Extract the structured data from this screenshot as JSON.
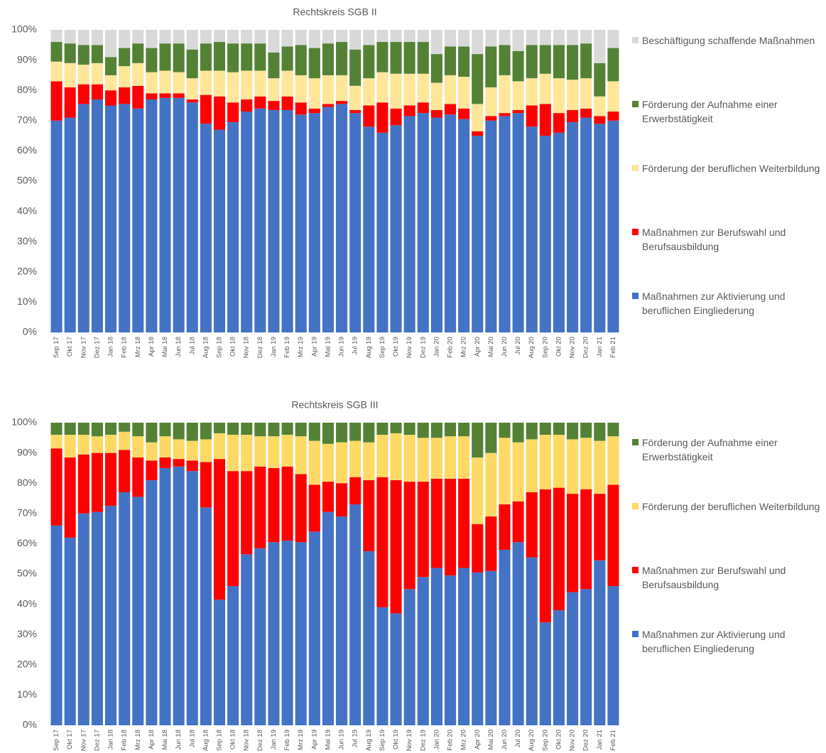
{
  "chart_data": [
    {
      "type": "stacked_bar",
      "title": "Rechtskreis SGB II",
      "legend": "right",
      "grid": false,
      "categories": [
        "Sep 17",
        "Okt 17",
        "Nov 17",
        "Dez 17",
        "Jan 18",
        "Feb 18",
        "Mrz 18",
        "Apr 18",
        "Mai 18",
        "Jun 18",
        "Jul 18",
        "Aug 18",
        "Sep 18",
        "Okt 18",
        "Nov 18",
        "Dez 18",
        "Jan 19",
        "Feb 19",
        "Mrz 19",
        "Apr 19",
        "Mai 19",
        "Jun 19",
        "Jul 19",
        "Aug 19",
        "Sep 19",
        "Okt 19",
        "Nov 19",
        "Dez 19",
        "Jan 20",
        "Feb 20",
        "Mrz 20",
        "Apr 20",
        "Mai 20",
        "Jun 20",
        "Jul 20",
        "Aug 20",
        "Sep 20",
        "Okt 20",
        "Nov 20",
        "Dez 20",
        "Jan 21",
        "Feb 21"
      ],
      "ylim": [
        0,
        100
      ],
      "yticks": [
        {
          "value": 0,
          "label": "0%"
        },
        {
          "value": 10,
          "label": "10%"
        },
        {
          "value": 20,
          "label": "20%"
        },
        {
          "value": 30,
          "label": "30%"
        },
        {
          "value": 40,
          "label": "40%"
        },
        {
          "value": 50,
          "label": "50%"
        },
        {
          "value": 60,
          "label": "60%"
        },
        {
          "value": 70,
          "label": "70%"
        },
        {
          "value": 80,
          "label": "80%"
        },
        {
          "value": 90,
          "label": "90%"
        },
        {
          "value": 100,
          "label": "100%"
        }
      ],
      "series": [
        {
          "name": "Maßnahmen zur Aktivierung und beruflichen Eingliederung",
          "color": "#4472c4",
          "values": [
            70,
            71,
            75.5,
            77,
            75,
            75.5,
            74,
            77,
            77.5,
            77.5,
            76,
            69,
            67,
            69.5,
            73,
            74,
            73.5,
            73.5,
            72,
            72.5,
            74.5,
            75.5,
            72.5,
            68,
            66,
            68.5,
            71.5,
            72.5,
            71,
            72,
            70.5,
            65,
            70,
            71.5,
            72.5,
            68,
            65,
            66,
            69.5,
            71,
            69,
            70
          ]
        },
        {
          "name": "Maßnahmen zur Berufswahl und Berufsausbildung",
          "color": "#ff0000",
          "values": [
            13,
            10,
            6.5,
            5,
            5,
            5.5,
            7.5,
            2,
            1.5,
            1.5,
            1,
            9.5,
            11,
            6.5,
            4,
            4,
            3,
            4.5,
            4,
            1.5,
            1,
            1,
            1,
            7,
            10,
            5.5,
            3.5,
            3.5,
            2.5,
            3.5,
            3.5,
            1.5,
            1.5,
            1,
            1,
            7,
            10.5,
            6.5,
            4,
            3,
            2.5,
            3
          ]
        },
        {
          "name": "Förderung der beruflichen Weiterbildung",
          "color": "#ffe699",
          "values": [
            6.5,
            8,
            6.5,
            7,
            5,
            7,
            7.5,
            7,
            7.5,
            7,
            7,
            8,
            8.5,
            10,
            9.5,
            8.5,
            7.5,
            8.5,
            9,
            10,
            9.5,
            8.5,
            8,
            9,
            10,
            11.5,
            10.5,
            9.5,
            9,
            9.5,
            10.5,
            9,
            9.5,
            12.5,
            9.5,
            9,
            10,
            11.5,
            10,
            10,
            6.5,
            10
          ]
        },
        {
          "name": "Förderung der Aufnahme einer Erwerbstätigkeit",
          "color": "#548235",
          "values": [
            6.5,
            6.5,
            6.5,
            6,
            6,
            6,
            6.5,
            8,
            9,
            9.5,
            9.5,
            9,
            9.5,
            9.5,
            9,
            9,
            8.5,
            8,
            10,
            10,
            10.5,
            11,
            12,
            11,
            10,
            10.5,
            10.5,
            10.5,
            9.5,
            9.5,
            10,
            16.5,
            13.5,
            10,
            10,
            11,
            9.5,
            11,
            11.5,
            11.5,
            11,
            11
          ]
        },
        {
          "name": "Beschäftigung schaffende Maßnahmen",
          "color": "#d9d9d9",
          "values": [
            4,
            4.5,
            5,
            5,
            9,
            6,
            4.5,
            6,
            4.5,
            4.5,
            6.5,
            4.5,
            4,
            4.5,
            4.5,
            4.5,
            7.5,
            5.5,
            5,
            6,
            4.5,
            4,
            6.5,
            5,
            4,
            4,
            4,
            4,
            8,
            5.5,
            5.5,
            8,
            5.5,
            5,
            7,
            5,
            5,
            5,
            5,
            4.5,
            11,
            6
          ]
        }
      ]
    },
    {
      "type": "stacked_bar",
      "title": "Rechtskreis SGB III",
      "legend": "right",
      "grid": false,
      "categories": [
        "Sep 17",
        "Okt 17",
        "Nov 17",
        "Dez 17",
        "Jan 18",
        "Feb 18",
        "Mrz 18",
        "Apr 18",
        "Mai 18",
        "Jun 18",
        "Jul 18",
        "Aug 18",
        "Sep 18",
        "Okt 18",
        "Nov 18",
        "Dez 18",
        "Jan 19",
        "Feb 19",
        "Mrz 19",
        "Apr 19",
        "Mai 19",
        "Jun 19",
        "Jul 19",
        "Aug 19",
        "Sep 19",
        "Okt 19",
        "Nov 19",
        "Dez 19",
        "Jan 20",
        "Feb 20",
        "Mrz 20",
        "Apr 20",
        "Mai 20",
        "Jun 20",
        "Jul 20",
        "Aug 20",
        "Sep 20",
        "Okt 20",
        "Nov 20",
        "Dez 20",
        "Jan 21",
        "Feb 21"
      ],
      "ylim": [
        0,
        100
      ],
      "yticks": [
        {
          "value": 0,
          "label": "0%"
        },
        {
          "value": 10,
          "label": "10%"
        },
        {
          "value": 20,
          "label": "20%"
        },
        {
          "value": 30,
          "label": "30%"
        },
        {
          "value": 40,
          "label": "40%"
        },
        {
          "value": 50,
          "label": "50%"
        },
        {
          "value": 60,
          "label": "60%"
        },
        {
          "value": 70,
          "label": "70%"
        },
        {
          "value": 80,
          "label": "80%"
        },
        {
          "value": 90,
          "label": "90%"
        },
        {
          "value": 100,
          "label": "100%"
        }
      ],
      "series": [
        {
          "name": "Maßnahmen zur Aktivierung und beruflichen Eingliederung",
          "color": "#4472c4",
          "values": [
            66,
            62,
            70,
            70.5,
            72.5,
            77,
            75.5,
            81,
            85,
            85.5,
            84,
            72,
            41.5,
            46,
            56.5,
            58.5,
            60.5,
            61,
            60.5,
            64,
            70.5,
            69,
            73,
            57.5,
            39,
            37,
            45,
            49,
            52,
            49.5,
            52,
            50.5,
            51,
            58,
            60.5,
            55.5,
            34,
            38,
            44,
            45,
            54.5,
            46
          ]
        },
        {
          "name": "Maßnahmen zur Berufswahl und Berufsausbildung",
          "color": "#ff0000",
          "values": [
            25.5,
            26.5,
            19.5,
            19.5,
            17.5,
            14,
            13,
            6.5,
            3.5,
            2.5,
            3.5,
            15,
            46.5,
            38,
            27.5,
            27,
            24.5,
            24.5,
            22.5,
            15.5,
            10,
            11,
            9,
            23.5,
            43,
            44,
            35.5,
            31.5,
            29.5,
            32,
            29.5,
            16,
            18,
            15,
            13.5,
            21.5,
            44,
            40.5,
            32.5,
            33,
            22,
            33.5
          ]
        },
        {
          "name": "Förderung der beruflichen Weiterbildung",
          "color": "#ffd966",
          "values": [
            4.5,
            7.5,
            6.5,
            5.5,
            6,
            6,
            7,
            6,
            7,
            6.5,
            6.5,
            7.5,
            8.5,
            12,
            12,
            10,
            10.5,
            10.5,
            12.5,
            14.5,
            12.5,
            13.5,
            12,
            12.5,
            14,
            15.5,
            15.5,
            14.5,
            13.5,
            14,
            14,
            22,
            21,
            22,
            19.5,
            17.5,
            18,
            17.5,
            18,
            17,
            17.5,
            16
          ]
        },
        {
          "name": "Förderung der Aufnahme einer Erwerbstätigkeit",
          "color": "#548235",
          "values": [
            4,
            4,
            4,
            4.5,
            4,
            3,
            4.5,
            6.5,
            4.5,
            5.5,
            6,
            5.5,
            3.5,
            4,
            4,
            4.5,
            4.5,
            4,
            4.5,
            6,
            7,
            6.5,
            6,
            6.5,
            4,
            3.5,
            4,
            5,
            5,
            4.5,
            4.5,
            11.5,
            10,
            5,
            6.5,
            5.5,
            4,
            4,
            5.5,
            5,
            6,
            4.5
          ]
        }
      ]
    }
  ]
}
